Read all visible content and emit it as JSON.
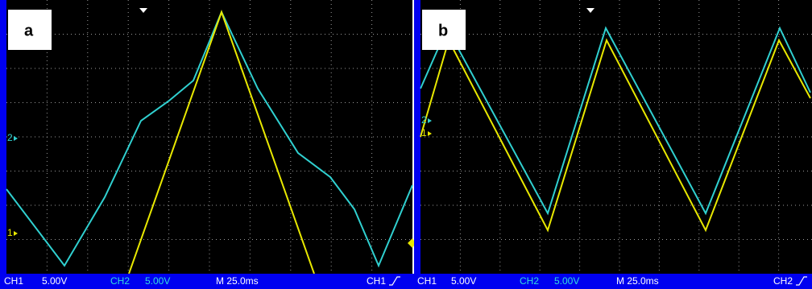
{
  "panels": [
    {
      "label": "a",
      "markers": [
        "2",
        "1"
      ],
      "status": {
        "ch1": "CH1",
        "ch1_scale": "5.00V",
        "ch2": "CH2",
        "ch2_scale": "5.00V",
        "timebase": "M 25.0ms",
        "trigger_source": "CH1"
      }
    },
    {
      "label": "b",
      "markers": [
        "2",
        "1"
      ],
      "status": {
        "ch1": "CH1",
        "ch1_scale": "5.00V",
        "ch2": "CH2",
        "ch2_scale": "5.00V",
        "timebase": "M 25.0ms",
        "trigger_source": "CH2"
      }
    }
  ]
}
